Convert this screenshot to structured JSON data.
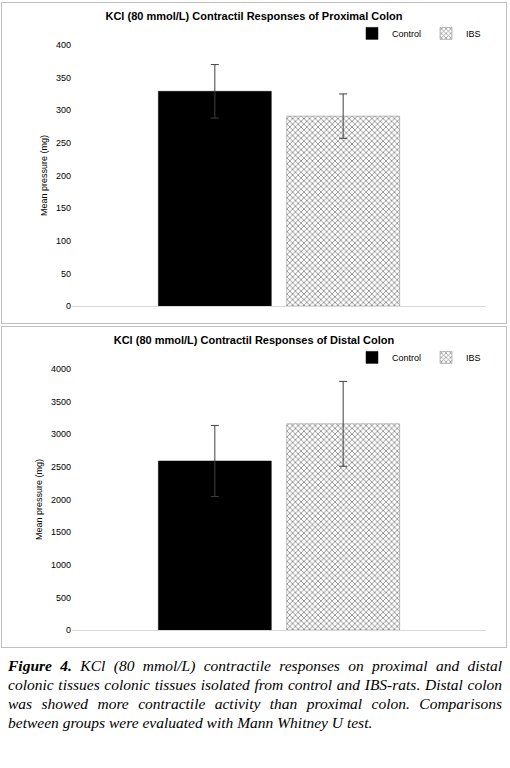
{
  "chart_data": [
    {
      "type": "bar",
      "title": "KCl (80 mmol/L) Contractil Responses of Proximal Colon",
      "y_label": "Mean pressure (mg)",
      "categories": [
        null
      ],
      "series": [
        {
          "name": "Control",
          "color": "#000000",
          "values": [
            329
          ],
          "errors": [
            41
          ]
        },
        {
          "name": "IBS",
          "color": "#808080",
          "marker": "crosshatch",
          "values": [
            291
          ],
          "errors": [
            34
          ]
        }
      ],
      "ylim": [
        0,
        400
      ],
      "yticks": [
        0,
        50,
        100,
        150,
        200,
        250,
        300,
        350,
        400
      ],
      "grid": false,
      "legend": "top right",
      "tick_labels": "y"
    },
    {
      "type": "bar",
      "title": "KCl (80 mmol/L) Contractil Responses of Distal Colon",
      "y_label": "Mean pressure (mg)",
      "categories": [
        null
      ],
      "series": [
        {
          "name": "Control",
          "color": "#000000",
          "values": [
            2590
          ],
          "errors": [
            545
          ]
        },
        {
          "name": "IBS",
          "color": "#808080",
          "marker": "crosshatch",
          "values": [
            3160
          ],
          "errors": [
            650
          ]
        }
      ],
      "ylim": [
        0,
        4000
      ],
      "yticks": [
        0,
        500,
        1000,
        1500,
        2000,
        2500,
        3000,
        3500,
        4000
      ],
      "grid": false,
      "legend": "top right",
      "tick_labels": "y"
    }
  ],
  "caption": {
    "label": "Figure 4.",
    "text": "KCl (80 mmol/L) contractile responses on proximal and distal colonic tissues colonic tissues isolated from control and IBS-rats. Distal colon was showed more contractile activity than proximal colon. Comparisons between groups were evaluated with Mann Whitney U test."
  }
}
